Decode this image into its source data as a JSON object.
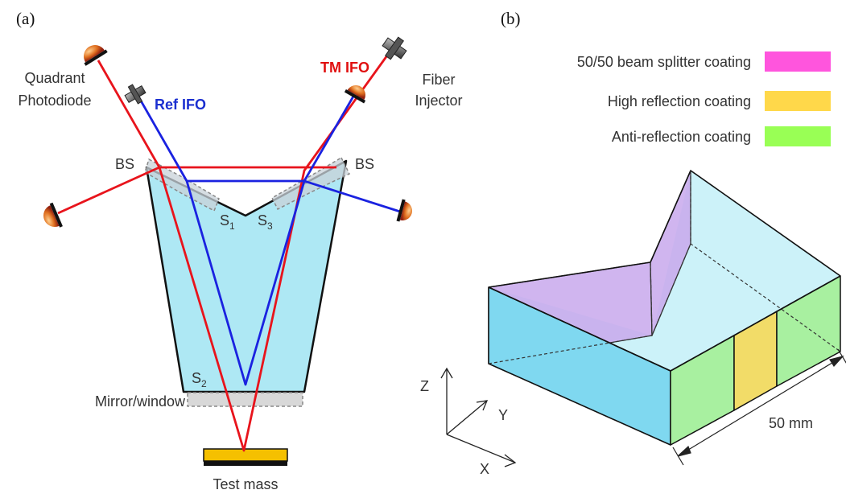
{
  "panel_a": {
    "label": "(a)",
    "quadrant_photodiode": [
      "Quadrant",
      "Photodiode"
    ],
    "fiber_injector": [
      "Fiber",
      "Injector"
    ],
    "ref_ifo": "Ref IFO",
    "tm_ifo": "TM IFO",
    "bs_left": "BS",
    "bs_right": "BS",
    "s1": "S",
    "s1_sub": "1",
    "s2": "S",
    "s2_sub": "2",
    "s3": "S",
    "s3_sub": "3",
    "mirror_window": "Mirror/window",
    "test_mass": "Test mass"
  },
  "panel_b": {
    "label": "(b)",
    "legend": [
      {
        "text": "50/50 beam splitter coating",
        "color": "#ff55dd"
      },
      {
        "text": "High reflection coating",
        "color": "#ffd84a"
      },
      {
        "text": "Anti-reflection coating",
        "color": "#99ff55"
      }
    ],
    "axis_z": "Z",
    "axis_y": "Y",
    "axis_x": "X",
    "dimension": "50 mm"
  },
  "colors": {
    "glass": "#aee8f4",
    "tm_beam": "#e8141c",
    "ref_beam": "#1a22e0",
    "test_mass": "#f5c000"
  }
}
